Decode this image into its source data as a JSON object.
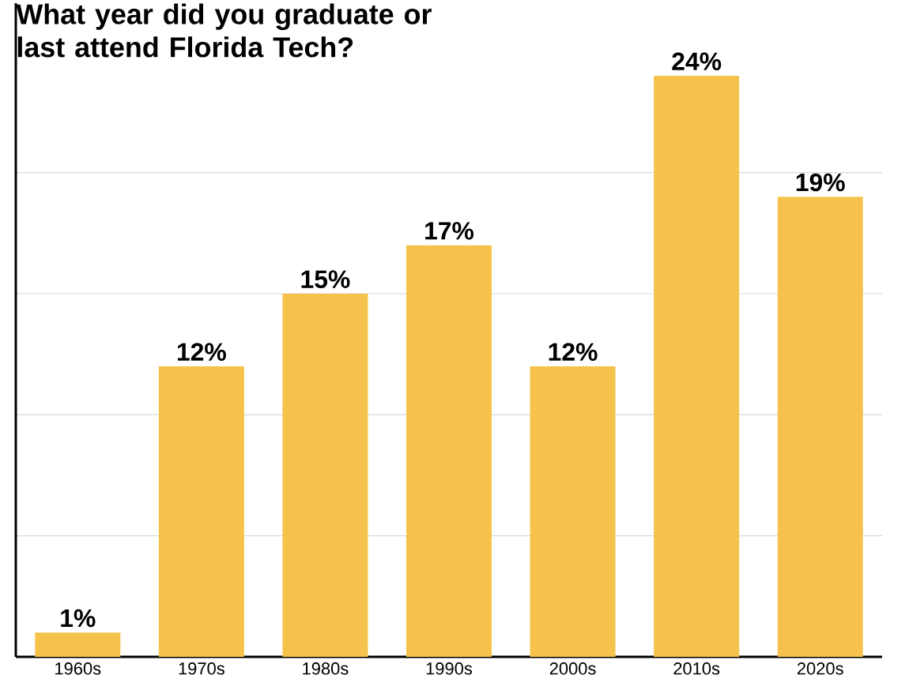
{
  "chart_data": {
    "type": "bar",
    "title": "What year did you graduate or last attend Florida Tech?",
    "categories": [
      "1960s",
      "1970s",
      "1980s",
      "1990s",
      "2000s",
      "2010s",
      "2020s"
    ],
    "values": [
      1,
      12,
      15,
      17,
      12,
      24,
      19
    ],
    "value_labels": [
      "1%",
      "12%",
      "15%",
      "17%",
      "12%",
      "24%",
      "19%"
    ],
    "color": "#f5c24c",
    "ylim": [
      0,
      27
    ],
    "yticks": [
      {
        "value": 5,
        "label": null
      },
      {
        "value": 10,
        "label": null
      },
      {
        "value": 15,
        "label": null
      },
      {
        "value": 20,
        "label": null
      }
    ],
    "grid": "y",
    "tick_labels": "x"
  }
}
